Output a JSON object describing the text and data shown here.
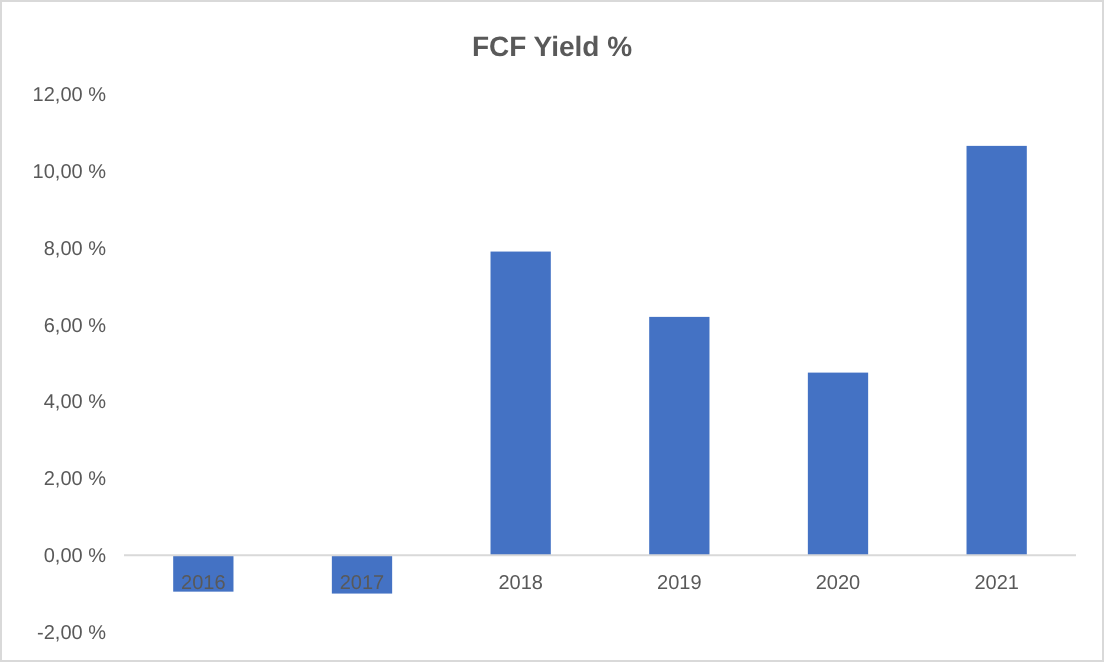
{
  "chart_data": {
    "type": "bar",
    "title": "FCF Yield %",
    "categories": [
      "2016",
      "2017",
      "2018",
      "2019",
      "2020",
      "2021"
    ],
    "values": [
      -0.95,
      -1.0,
      7.9,
      6.2,
      4.75,
      10.65
    ],
    "color": "#4472c4",
    "ylim": [
      -2,
      12
    ],
    "yticks": [
      {
        "value": -2,
        "label": "-2,00 %"
      },
      {
        "value": 0,
        "label": "0,00 %"
      },
      {
        "value": 2,
        "label": "2,00 %"
      },
      {
        "value": 4,
        "label": "4,00 %"
      },
      {
        "value": 6,
        "label": "6,00 %"
      },
      {
        "value": 8,
        "label": "8,00 %"
      },
      {
        "value": 10,
        "label": "10,00 %"
      },
      {
        "value": 12,
        "label": "12,00 %"
      }
    ],
    "grid": false
  }
}
